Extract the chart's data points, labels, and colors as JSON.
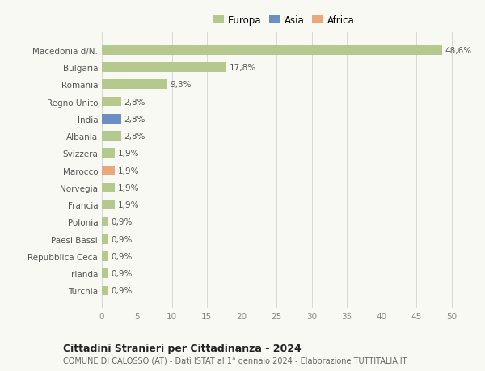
{
  "categories": [
    "Turchia",
    "Irlanda",
    "Repubblica Ceca",
    "Paesi Bassi",
    "Polonia",
    "Francia",
    "Norvegia",
    "Marocco",
    "Svizzera",
    "Albania",
    "India",
    "Regno Unito",
    "Romania",
    "Bulgaria",
    "Macedonia d/N."
  ],
  "values": [
    0.9,
    0.9,
    0.9,
    0.9,
    0.9,
    1.9,
    1.9,
    1.9,
    1.9,
    2.8,
    2.8,
    2.8,
    9.3,
    17.8,
    48.6
  ],
  "labels": [
    "0,9%",
    "0,9%",
    "0,9%",
    "0,9%",
    "0,9%",
    "1,9%",
    "1,9%",
    "1,9%",
    "1,9%",
    "2,8%",
    "2,8%",
    "2,8%",
    "9,3%",
    "17,8%",
    "48,6%"
  ],
  "colors": [
    "#b5c98e",
    "#b5c98e",
    "#b5c98e",
    "#b5c98e",
    "#b5c98e",
    "#b5c98e",
    "#b5c98e",
    "#e8a87c",
    "#b5c98e",
    "#b5c98e",
    "#6b8fc2",
    "#b5c98e",
    "#b5c98e",
    "#b5c98e",
    "#b5c98e"
  ],
  "legend_labels": [
    "Europa",
    "Asia",
    "Africa"
  ],
  "legend_colors": [
    "#b5c98e",
    "#6b8fc2",
    "#e8a87c"
  ],
  "xlim": [
    0,
    52
  ],
  "xticks": [
    0,
    5,
    10,
    15,
    20,
    25,
    30,
    35,
    40,
    45,
    50
  ],
  "title": "Cittadini Stranieri per Cittadinanza - 2024",
  "subtitle": "COMUNE DI CALOSSO (AT) - Dati ISTAT al 1° gennaio 2024 - Elaborazione TUTTITALIA.IT",
  "bg_color": "#f9f9f4",
  "grid_color": "#d8d8d8",
  "bar_height": 0.55,
  "label_fontsize": 7.5,
  "ytick_fontsize": 7.5,
  "xtick_fontsize": 7.5,
  "title_fontsize": 9.0,
  "subtitle_fontsize": 7.0
}
